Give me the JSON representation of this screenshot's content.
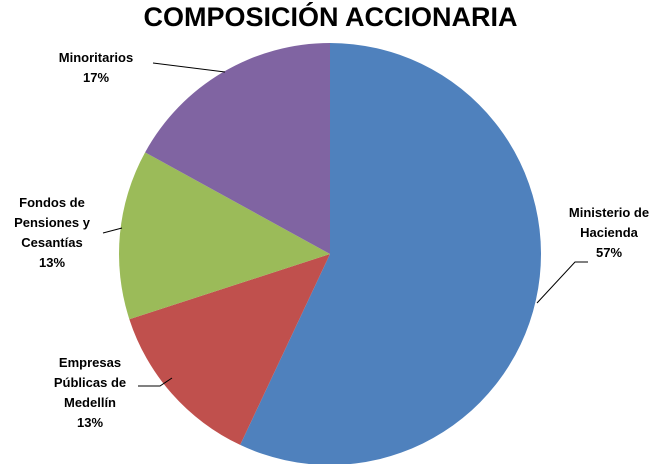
{
  "chart_data": {
    "type": "pie",
    "title": "COMPOSICIÓN ACCIONARIA",
    "categories": [
      "Ministerio de Hacienda",
      "Empresas Públicas de Medellín",
      "Fondos de Pensiones y Cesantías",
      "Minoritarios"
    ],
    "values": [
      57,
      13,
      13,
      17
    ],
    "value_labels": [
      "57%",
      "13%",
      "13%",
      "17%"
    ],
    "colors": [
      "#4f81bd",
      "#c0504d",
      "#9bbb59",
      "#8064a2"
    ]
  }
}
